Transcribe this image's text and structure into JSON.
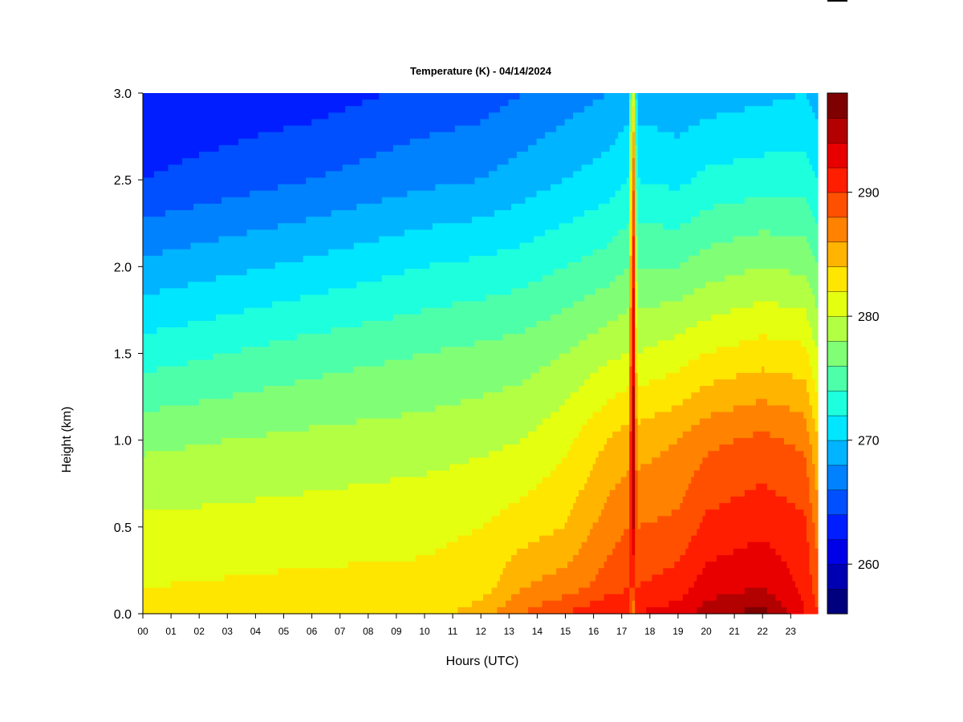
{
  "chart_data": {
    "type": "heatmap",
    "title": "Temperature (K) - 04/14/2024",
    "xlabel": "Hours (UTC)",
    "ylabel": "Height (km)",
    "x_tick_labels": [
      "00",
      "01",
      "02",
      "03",
      "04",
      "05",
      "06",
      "07",
      "08",
      "09",
      "10",
      "11",
      "12",
      "13",
      "14",
      "15",
      "16",
      "17",
      "18",
      "19",
      "20",
      "21",
      "22",
      "23"
    ],
    "x_ticks": [
      0,
      1,
      2,
      3,
      4,
      5,
      6,
      7,
      8,
      9,
      10,
      11,
      12,
      13,
      14,
      15,
      16,
      17,
      18,
      19,
      20,
      21,
      22,
      23
    ],
    "xlim": [
      0,
      23.95
    ],
    "y_ticks": [
      0.0,
      0.5,
      1.0,
      1.5,
      2.0,
      2.5,
      3.0
    ],
    "y_tick_labels": [
      "0.0",
      "0.5",
      "1.0",
      "1.5",
      "2.0",
      "2.5",
      "3.0"
    ],
    "ylim": [
      0,
      3.0
    ],
    "colorbar": {
      "range": [
        256,
        298
      ],
      "step": 2,
      "tick_values": [
        260,
        270,
        280,
        290
      ],
      "tick_labels": [
        "260",
        "270",
        "280",
        "290"
      ],
      "colors": [
        "#00007e",
        "#0000b3",
        "#0000e8",
        "#001eff",
        "#0050ff",
        "#0082ff",
        "#00b4ff",
        "#00e6ff",
        "#1effde",
        "#4effaa",
        "#80ff76",
        "#b2ff44",
        "#e4ff10",
        "#ffe600",
        "#ffb400",
        "#ff8200",
        "#ff5000",
        "#ff1e00",
        "#e80000",
        "#b30000",
        "#7e0000"
      ]
    },
    "temperature_profile_samples": [
      {
        "hour": 0,
        "heights_km": [
          0,
          0.15,
          0.5,
          1.0,
          1.5,
          2.0,
          2.5,
          3.0
        ],
        "temperature_K": [
          283.5,
          282,
          280.5,
          277.5,
          273,
          268.5,
          264,
          262
        ]
      },
      {
        "hour": 6,
        "heights_km": [
          0,
          0.15,
          0.5,
          1.0,
          1.5,
          2.0,
          2.5,
          3.0
        ],
        "temperature_K": [
          283.5,
          282.5,
          281,
          278.5,
          275,
          270.5,
          266,
          263
        ]
      },
      {
        "hour": 10,
        "heights_km": [
          0,
          0.15,
          0.5,
          1.0,
          1.5,
          2.0,
          2.5,
          3.0
        ],
        "temperature_K": [
          283,
          282.5,
          281.5,
          279,
          276,
          272,
          267.5,
          264.5
        ]
      },
      {
        "hour": 12,
        "heights_km": [
          0,
          0.15,
          0.5,
          1.0,
          1.5,
          2.0,
          2.5,
          3.0
        ],
        "temperature_K": [
          285,
          283,
          282,
          279.5,
          276.5,
          272.5,
          268,
          265
        ]
      },
      {
        "hour": 13.5,
        "heights_km": [
          0,
          0.15,
          0.5,
          1.0,
          1.5,
          2.0,
          2.5,
          3.0
        ],
        "temperature_K": [
          288,
          286,
          283,
          280,
          277,
          273,
          269,
          266
        ]
      },
      {
        "hour": 15,
        "heights_km": [
          0,
          0.15,
          0.5,
          1.0,
          1.5,
          2.0,
          2.5,
          3.0
        ],
        "temperature_K": [
          290,
          287,
          284,
          281.5,
          278,
          274,
          270,
          267
        ]
      },
      {
        "hour": 16.5,
        "heights_km": [
          0,
          0.15,
          0.5,
          1.0,
          1.5,
          2.0,
          2.5,
          3.0
        ],
        "temperature_K": [
          292,
          289,
          287,
          284,
          279.5,
          275,
          271,
          268
        ]
      },
      {
        "hour": 17.25,
        "heights_km": [
          0,
          0.15,
          0.5,
          1.0,
          1.5,
          2.0,
          2.5,
          3.0
        ],
        "temperature_K": [
          292,
          290,
          288,
          285,
          280,
          276,
          272,
          269
        ]
      },
      {
        "hour": 17.4,
        "heights_km": [
          0,
          0.15,
          0.5,
          1.0,
          1.5,
          2.0,
          2.5,
          3.0
        ],
        "temperature_K": [
          285,
          290,
          295,
          296,
          296,
          294,
          290,
          283
        ]
      },
      {
        "hour": 17.55,
        "heights_km": [
          0,
          0.15,
          0.5,
          1.0,
          1.5,
          2.0,
          2.5,
          3.0
        ],
        "temperature_K": [
          292,
          290,
          288,
          285,
          280,
          276,
          272,
          269
        ]
      },
      {
        "hour": 19,
        "heights_km": [
          0,
          0.15,
          0.5,
          1.0,
          1.5,
          2.0,
          2.5,
          3.0
        ],
        "temperature_K": [
          293,
          291,
          288.5,
          286,
          281,
          276,
          271.5,
          268.5
        ]
      },
      {
        "hour": 20,
        "heights_km": [
          0,
          0.15,
          0.5,
          1.0,
          1.5,
          2.0,
          2.5,
          3.0
        ],
        "temperature_K": [
          295,
          293,
          290.5,
          287.5,
          282,
          277,
          272.5,
          269
        ]
      },
      {
        "hour": 22,
        "heights_km": [
          0,
          0.15,
          0.5,
          1.0,
          1.5,
          2.0,
          2.5,
          3.0
        ],
        "temperature_K": [
          297,
          294,
          291.5,
          288.5,
          283,
          278,
          273,
          269.5
        ]
      },
      {
        "hour": 23.5,
        "heights_km": [
          0,
          0.15,
          0.5,
          1.0,
          1.5,
          2.0,
          2.5,
          3.0
        ],
        "temperature_K": [
          292,
          291.5,
          290.5,
          287.5,
          282.5,
          277.5,
          273,
          270
        ]
      },
      {
        "hour": 23.95,
        "heights_km": [
          0,
          0.15,
          0.5,
          1.0,
          1.5,
          2.0,
          2.5,
          3.0
        ],
        "temperature_K": [
          290,
          289,
          287,
          284,
          280,
          276,
          272,
          269
        ]
      }
    ]
  }
}
